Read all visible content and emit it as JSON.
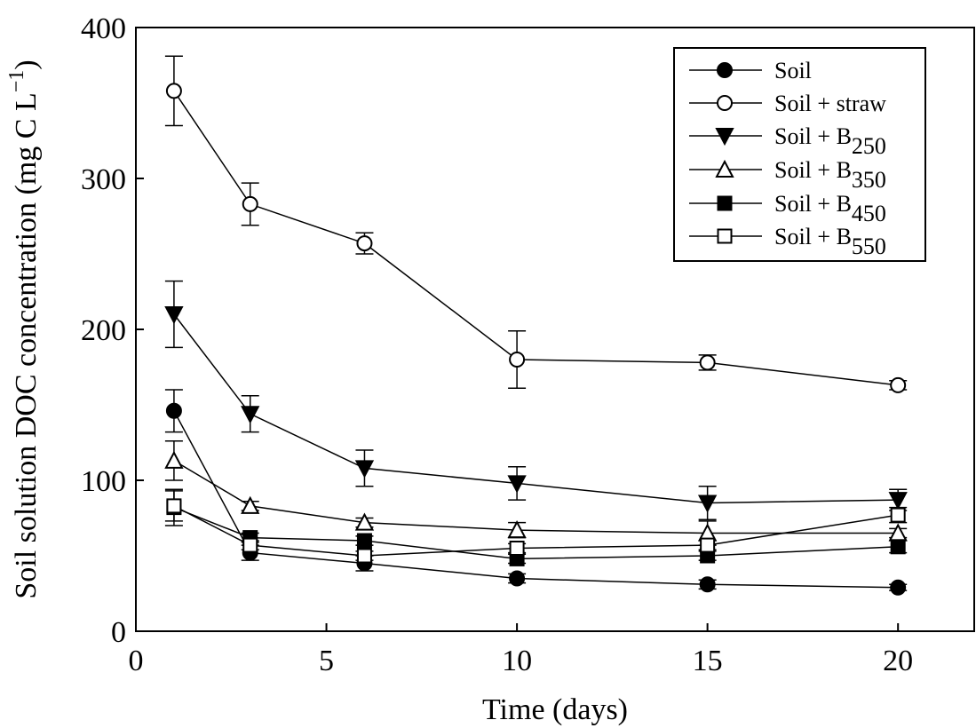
{
  "chart_data": {
    "type": "line",
    "xlabel": "Time (days)",
    "ylabel": "Soil solution DOC concentration (mg C L",
    "ylabel_sup": "−1",
    "ylabel_close": ")",
    "xlim": [
      0,
      22
    ],
    "ylim": [
      0,
      400
    ],
    "xticks": [
      0,
      5,
      10,
      15,
      20
    ],
    "yticks": [
      0,
      100,
      200,
      300,
      400
    ],
    "legend_position": "top-right",
    "grid": false,
    "series": [
      {
        "name": "Soil",
        "subscript": "",
        "marker": "circle",
        "filled": true,
        "x": [
          1,
          3,
          6,
          10,
          15,
          20
        ],
        "y": [
          146,
          52,
          45,
          35,
          31,
          29
        ],
        "err": [
          14,
          5,
          5,
          3,
          3,
          2
        ]
      },
      {
        "name": "Soil + straw",
        "subscript": "",
        "marker": "circle",
        "filled": false,
        "x": [
          1,
          3,
          6,
          10,
          15,
          20
        ],
        "y": [
          358,
          283,
          257,
          180,
          178,
          163
        ],
        "err": [
          23,
          14,
          7,
          19,
          5,
          3
        ]
      },
      {
        "name": "Soil + B",
        "subscript": "250",
        "marker": "triangle-down",
        "filled": true,
        "x": [
          1,
          3,
          6,
          10,
          15,
          20
        ],
        "y": [
          210,
          144,
          108,
          98,
          85,
          87
        ],
        "err": [
          22,
          12,
          12,
          11,
          11,
          7
        ]
      },
      {
        "name": "Soil + B",
        "subscript": "350",
        "marker": "triangle-up",
        "filled": false,
        "x": [
          1,
          3,
          6,
          10,
          15,
          20
        ],
        "y": [
          113,
          83,
          72,
          67,
          65,
          65
        ],
        "err": [
          13,
          3,
          3,
          5,
          8,
          3
        ]
      },
      {
        "name": "Soil + B",
        "subscript": "450",
        "marker": "square",
        "filled": true,
        "x": [
          1,
          3,
          6,
          10,
          15,
          20
        ],
        "y": [
          82,
          62,
          60,
          48,
          50,
          56
        ],
        "err": [
          12,
          3,
          3,
          3,
          3,
          4
        ]
      },
      {
        "name": "Soil + B",
        "subscript": "550",
        "marker": "square",
        "filled": false,
        "x": [
          1,
          3,
          6,
          10,
          15,
          20
        ],
        "y": [
          83,
          57,
          50,
          55,
          57,
          77
        ],
        "err": [
          10,
          3,
          3,
          3,
          3,
          5
        ]
      }
    ]
  }
}
